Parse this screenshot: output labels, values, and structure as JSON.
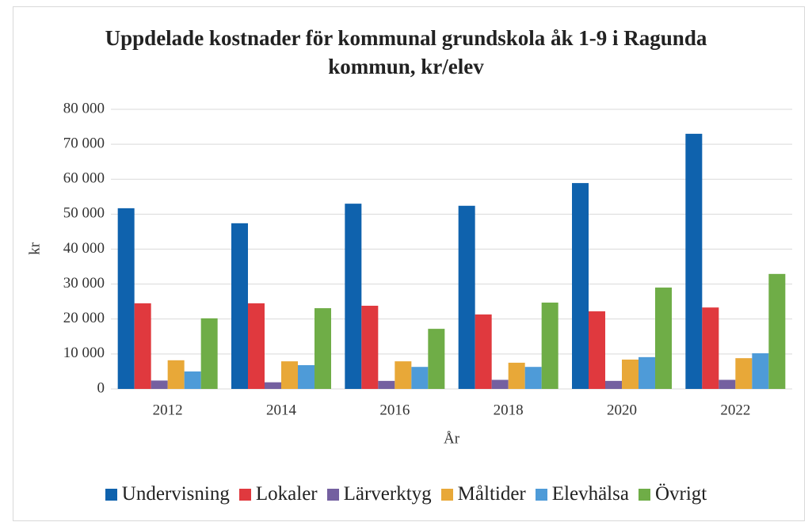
{
  "chart_data": {
    "type": "bar",
    "title": "Uppdelade kostnader för kommunal grundskola åk 1-9 i Ragunda kommun, kr/elev",
    "x_label": "År",
    "y_label": "kr",
    "categories": [
      "2012",
      "2014",
      "2016",
      "2018",
      "2020",
      "2022"
    ],
    "series": [
      {
        "name": "Undervisning",
        "color": "#0f62ad",
        "values": [
          51700,
          47400,
          53000,
          52400,
          58900,
          73000
        ]
      },
      {
        "name": "Lokaler",
        "color": "#e0393e",
        "values": [
          24500,
          24500,
          23800,
          21300,
          22200,
          23300
        ]
      },
      {
        "name": "Lärverktyg",
        "color": "#7460a0",
        "values": [
          2400,
          1900,
          2300,
          2600,
          2300,
          2600
        ]
      },
      {
        "name": "Måltider",
        "color": "#e8a838",
        "values": [
          8200,
          7900,
          7900,
          7500,
          8400,
          8800
        ]
      },
      {
        "name": "Elevhälsa",
        "color": "#4e9bd8",
        "values": [
          5000,
          6800,
          6300,
          6300,
          9100,
          10200
        ]
      },
      {
        "name": "Övrigt",
        "color": "#6fad47",
        "values": [
          20200,
          23100,
          17200,
          24700,
          29000,
          32900
        ]
      }
    ],
    "ylim": [
      0,
      80000
    ],
    "yticks": [
      0,
      {
        "value": 10000,
        "label": "10 000"
      },
      {
        "value": 20000,
        "label": "20 000"
      },
      {
        "value": 30000,
        "label": "30 000"
      },
      {
        "value": 40000,
        "label": "40 000"
      },
      {
        "value": 50000,
        "label": "50 000"
      },
      {
        "value": 60000,
        "label": "60 000"
      },
      {
        "value": 70000,
        "label": "70 000"
      },
      {
        "value": 80000,
        "label": "80 000"
      }
    ],
    "grid": true,
    "legend": "bottom"
  }
}
